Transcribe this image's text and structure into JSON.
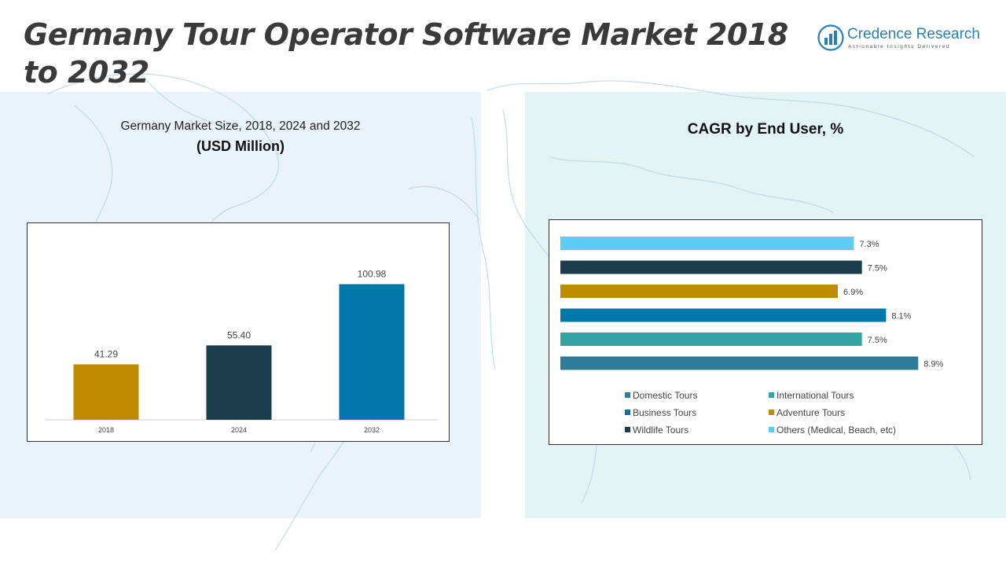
{
  "title": "Germany Tour Operator Software Market 2018 to 2032",
  "logo": {
    "name": "Credence Research",
    "tagline": "Actionable Insights Delivered"
  },
  "left_chart": {
    "subtitle": "Germany Market Size, 2018, 2024 and 2032",
    "unit_label": "(USD Million)"
  },
  "right_chart": {
    "title": "CAGR by End User, %"
  },
  "colors": {
    "gold": "#bf8c00",
    "navy": "#1a3c4d",
    "blue": "#0077a8",
    "teal": "#31a6a1",
    "steel": "#2e7c9c",
    "light": "#5ccdf3"
  },
  "chart_data": [
    {
      "type": "bar",
      "title": "Germany Market Size, 2018, 2024 and 2032",
      "ylabel": "USD Million",
      "categories": [
        "2018",
        "2024",
        "2032"
      ],
      "values": [
        41.29,
        55.4,
        100.98
      ],
      "value_labels": [
        "41.29",
        "55.40",
        "100.98"
      ],
      "bar_colors": [
        "#bf8c00",
        "#1a3c4d",
        "#0077a8"
      ],
      "ylim": [
        0,
        120
      ],
      "grid": false
    },
    {
      "type": "bar",
      "orientation": "horizontal",
      "title": "CAGR by End User, %",
      "categories": [
        "Others (Medical, Beach, etc)",
        "Wildlife Tours",
        "Adventure Tours",
        "Business Tours",
        "International Tours",
        "Domestic Tours"
      ],
      "values": [
        7.3,
        7.5,
        6.9,
        8.1,
        7.5,
        8.9
      ],
      "value_labels": [
        "7.3%",
        "7.5%",
        "6.9%",
        "8.1%",
        "7.5%",
        "8.9%"
      ],
      "bar_colors": [
        "#5ccdf3",
        "#1a3c4d",
        "#bf8c00",
        "#0077a8",
        "#31a6a1",
        "#2e7c9c"
      ],
      "xlim": [
        0,
        9.5
      ],
      "grid": false,
      "legend": [
        {
          "label": "Domestic Tours",
          "color": "#2e7c9c"
        },
        {
          "label": "International Tours",
          "color": "#31a6a1"
        },
        {
          "label": "Business Tours",
          "color": "#0077a8"
        },
        {
          "label": "Adventure Tours",
          "color": "#bf8c00"
        },
        {
          "label": "Wildlife Tours",
          "color": "#1a3c4d"
        },
        {
          "label": "Others (Medical, Beach, etc)",
          "color": "#5ccdf3"
        }
      ],
      "legend_position": "bottom"
    }
  ]
}
